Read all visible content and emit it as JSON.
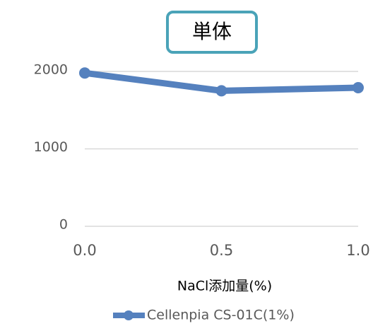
{
  "chart_data": {
    "type": "line",
    "title": "単体",
    "x_label": "NaCl添加量(%)",
    "x": [
      0,
      0.5,
      1
    ],
    "series": [
      {
        "name": "Cellenpia CS-01C(1%)",
        "color": "#5581be",
        "values": [
          1980,
          1750,
          1790
        ]
      }
    ],
    "xlim": [
      0,
      1
    ],
    "xticks": [
      {
        "value": 0,
        "label": "0.0"
      },
      {
        "value": 0.5,
        "label": "0.5"
      },
      {
        "value": 1,
        "label": "1.0"
      }
    ],
    "ylim": [
      0,
      2000
    ],
    "yticks": [
      0,
      1000,
      2000
    ],
    "grid": true,
    "legend": "bottom"
  }
}
